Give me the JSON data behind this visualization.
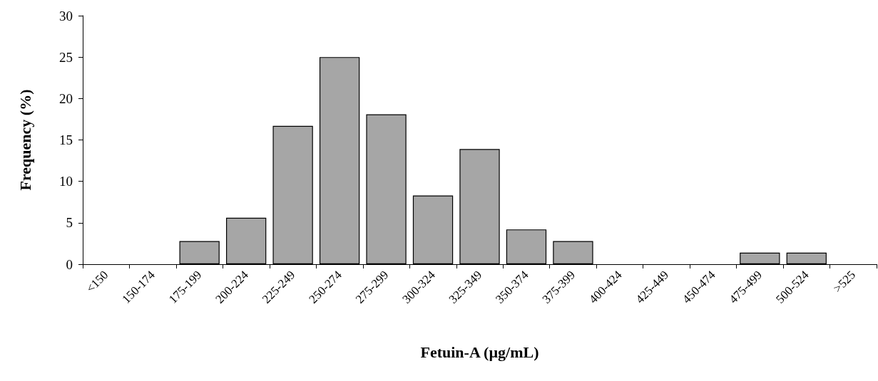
{
  "chart_data": {
    "type": "bar",
    "xlabel": "Fetuin-A (µg/mL)",
    "ylabel": "Frequency (%)",
    "categories": [
      "<150",
      "150-174",
      "175-199",
      "200-224",
      "225-249",
      "250-274",
      "275-299",
      "300-324",
      "325-349",
      "350-374",
      "375-399",
      "400-424",
      "425-449",
      "450-474",
      "475-499",
      "500-524",
      ">525"
    ],
    "values": [
      0,
      0,
      2.8,
      5.6,
      16.7,
      25,
      18.1,
      8.3,
      13.9,
      4.2,
      2.8,
      0,
      0,
      0,
      1.4,
      1.4,
      0
    ],
    "color": "#a6a6a6",
    "ylim": [
      0,
      30
    ],
    "yticks": [
      0,
      5,
      10,
      15,
      20,
      25,
      30
    ],
    "grid": false
  }
}
